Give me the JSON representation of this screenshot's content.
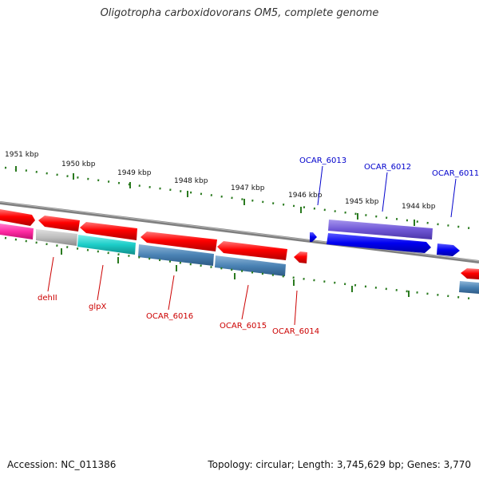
{
  "title": "Oligotropha carboxidovorans OM5, complete genome",
  "footer": {
    "accession": "Accession: NC_011386",
    "summary": "Topology: circular; Length: 3,745,629 bp; Genes: 3,770"
  },
  "colors": {
    "backbone": "#7f7f7f",
    "tick": "#2a7a1f",
    "reverse_label": "#cc0000",
    "forward_label": "#0000cc",
    "red_cds": "#ff0000",
    "red_rna": "#ff0000",
    "magenta": "#ff2aa3",
    "gray": "#bbbbbb",
    "cyan": "#1ccdc8",
    "steel": "#4a82b4",
    "purple": "#7058d6",
    "blue": "#0000f0"
  },
  "kbp_ticks": [
    {
      "kbp": 1951,
      "label": "1951 kbp"
    },
    {
      "kbp": 1950,
      "label": "1950 kbp"
    },
    {
      "kbp": 1949,
      "label": "1949 kbp"
    },
    {
      "kbp": 1948,
      "label": "1948 kbp"
    },
    {
      "kbp": 1947,
      "label": "1947 kbp"
    },
    {
      "kbp": 1946,
      "label": "1946 kbp"
    },
    {
      "kbp": 1945,
      "label": "1945 kbp"
    },
    {
      "kbp": 1944,
      "label": "1944 kbp"
    }
  ],
  "gene_labels": [
    {
      "id": "dehII",
      "text": "dehII",
      "strand": "reverse"
    },
    {
      "id": "glpx",
      "text": "glpX",
      "strand": "reverse"
    },
    {
      "id": "ocar-6016",
      "text": "OCAR_6016",
      "strand": "reverse"
    },
    {
      "id": "ocar-6015",
      "text": "OCAR_6015",
      "strand": "reverse"
    },
    {
      "id": "ocar-6014",
      "text": "OCAR_6014",
      "strand": "reverse"
    },
    {
      "id": "ocar-6013",
      "text": "OCAR_6013",
      "strand": "forward"
    },
    {
      "id": "ocar-6012",
      "text": "OCAR_6012",
      "strand": "forward"
    },
    {
      "id": "ocar-6011",
      "text": "OCAR_6011",
      "strand": "forward"
    }
  ]
}
